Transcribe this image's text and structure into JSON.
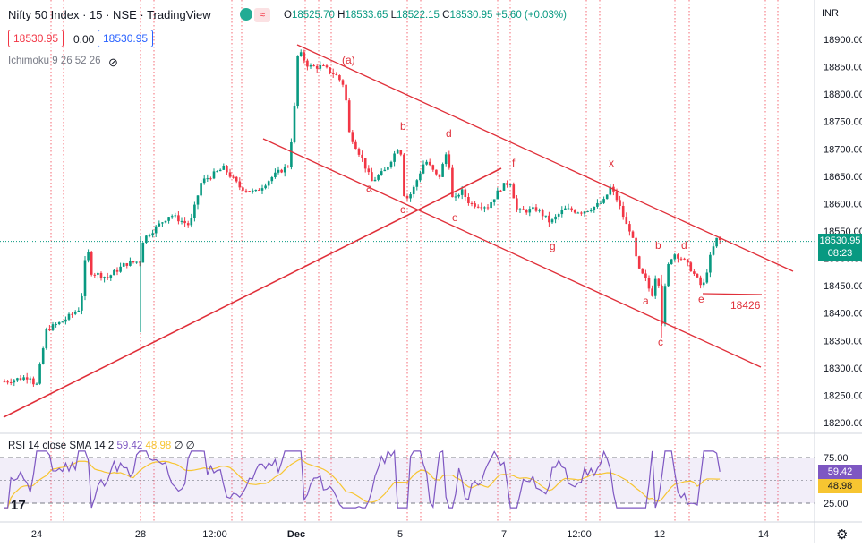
{
  "header": {
    "symbol": "Nifty 50 Index · 15 · NSE · TradingView",
    "ohlc": {
      "o": "18525.70",
      "h": "18533.65",
      "l": "18522.15",
      "c": "18530.95",
      "chg": "+5.60 (+0.03%)"
    },
    "bid": "18530.95",
    "spread": "0.00",
    "ask": "18530.95",
    "indicator": "Ichimoku 9 26 52 26",
    "currency": "INR"
  },
  "price_badge": {
    "value": "18530.95",
    "countdown": "08:23"
  },
  "rsi_header": {
    "label": "RSI 14 close SMA 14 2",
    "rsi": "59.42",
    "sma": "48.98",
    "extra": "∅ ∅"
  },
  "rsi_badges": {
    "rsi": "59.42",
    "sma": "48.98"
  },
  "colors": {
    "up": "#089981",
    "down": "#f23645",
    "line": "#e0303a",
    "rsi": "#7e57c2",
    "sma": "#f7c531",
    "accent": "#2962ff"
  },
  "chart_data": {
    "type": "candlestick",
    "title": "Nifty 50 Index · 15 · NSE",
    "y_ticks": [
      18900,
      18850,
      18800,
      18750,
      18700,
      18650,
      18600,
      18550,
      18500,
      18450,
      18400,
      18350,
      18300,
      18250,
      18200
    ],
    "ylim": [
      18180,
      18930
    ],
    "x_ticks": [
      "24",
      "28",
      "12:00",
      "Dec",
      "5",
      "7",
      "12:00",
      "12",
      "14"
    ],
    "last_price": 18530.95,
    "trendlines": [
      {
        "from": [
          "24",
          18215
        ],
        "to": [
          "6",
          18650
        ]
      },
      {
        "from": [
          "1 Dec",
          18890
        ],
        "to": [
          "14",
          18470
        ]
      },
      {
        "from": [
          "30 Nov",
          18715
        ],
        "to": [
          "14",
          18300
        ]
      },
      {
        "from": [
          "13 Dec",
          18430
        ],
        "to": [
          "14",
          18430
        ]
      }
    ],
    "annotations": [
      "(a)",
      "a",
      "b",
      "c",
      "d",
      "e",
      "f",
      "g",
      "x",
      "a",
      "b",
      "c",
      "d",
      "e",
      "18426"
    ],
    "rsi": {
      "levels": [
        75.0,
        25.0
      ],
      "rsi_last": 59.42,
      "sma_last": 48.98,
      "y_ticks": [
        "75.00",
        "25.00"
      ]
    },
    "grid": false
  }
}
